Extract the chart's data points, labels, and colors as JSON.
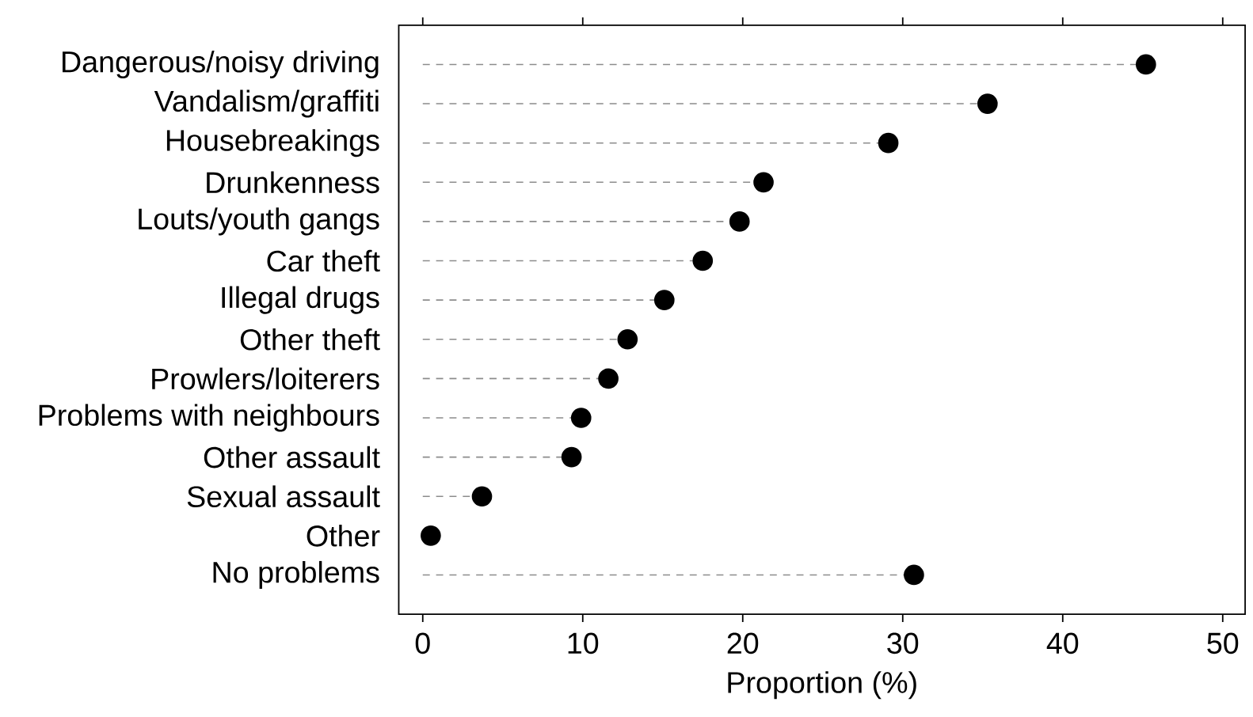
{
  "chart_data": {
    "type": "lollipop",
    "orientation": "horizontal",
    "xlabel": "Proportion (%)",
    "categories": [
      "Dangerous/noisy driving",
      "Vandalism/graffiti",
      "Housebreakings",
      "Drunkenness",
      "Louts/youth gangs",
      "Car theft",
      "Illegal drugs",
      "Other theft",
      "Prowlers/loiterers",
      "Problems with neighbours",
      "Other assault",
      "Sexual assault",
      "Other",
      "No problems"
    ],
    "values": [
      45.2,
      35.3,
      29.1,
      21.3,
      19.8,
      17.5,
      15.1,
      12.8,
      11.6,
      9.9,
      9.3,
      3.7,
      0.5,
      30.7
    ],
    "color": "#000000",
    "line_style": "dashed",
    "xlim": [
      -1.5,
      51.4
    ],
    "xticks": [
      0,
      10,
      20,
      30,
      40,
      50
    ],
    "grid": false
  }
}
